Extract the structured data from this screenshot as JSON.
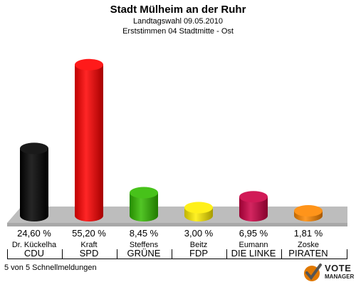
{
  "header": {
    "title": "Stadt Mülheim an der Ruhr",
    "subtitle": "Landtagswahl 09.05.2010",
    "subtitle2": "Erststimmen 04 Stadtmitte - Ost"
  },
  "chart_data": {
    "type": "bar",
    "categories": [
      "CDU",
      "SPD",
      "GRÜNE",
      "FDP",
      "DIE LINKE",
      "PIRATEN"
    ],
    "candidates": [
      "Dr. Kückelha",
      "Kraft",
      "Steffens",
      "Beitz",
      "Eumann",
      "Zoske"
    ],
    "values": [
      24.6,
      55.2,
      8.45,
      3.0,
      6.95,
      1.81
    ],
    "value_labels": [
      "24,60 %",
      "55,20 %",
      "8,45 %",
      "3,00 %",
      "6,95 %",
      "1,81 %"
    ],
    "colors": [
      "#000000",
      "#ff0000",
      "#33bb00",
      "#ffee00",
      "#cc0044",
      "#ff8800"
    ],
    "ylim": [
      0,
      60
    ]
  },
  "footer": {
    "text": "5 von 5 Schnellmeldungen"
  },
  "logo": {
    "line1": "VOTE",
    "line2": "MANAGER"
  }
}
